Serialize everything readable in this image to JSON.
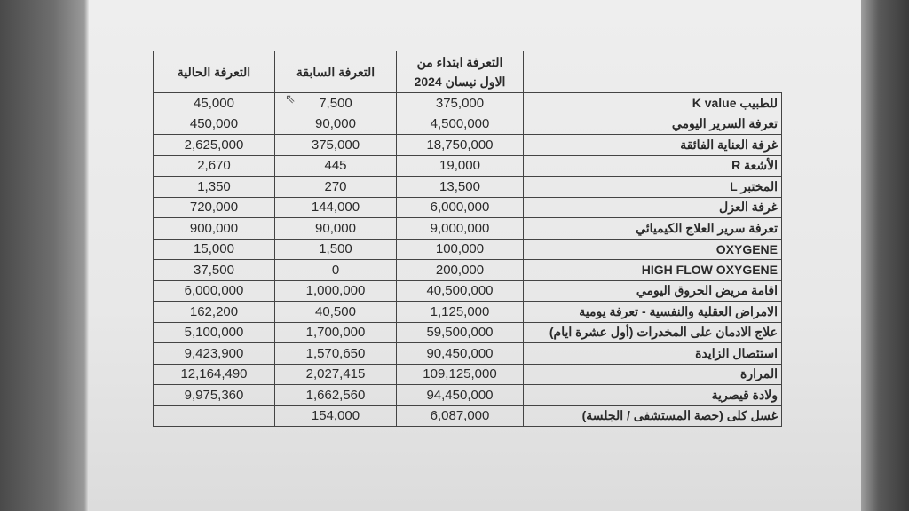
{
  "headers": {
    "current": "التعرفة الحالية",
    "previous": "التعرفة السابقة",
    "from_april_line1": "التعرفة ابتداء من",
    "from_april_line2": "الاول نيسان 2024"
  },
  "rows": [
    {
      "label": "للطبيب K value",
      "current": "45,000",
      "previous": "7,500",
      "from_april": "375,000"
    },
    {
      "label": "تعرفة السرير اليومي",
      "current": "450,000",
      "previous": "90,000",
      "from_april": "4,500,000"
    },
    {
      "label": "غرفة العناية الفائقة",
      "current": "2,625,000",
      "previous": "375,000",
      "from_april": "18,750,000"
    },
    {
      "label": "الأشعة R",
      "current": "2,670",
      "previous": "445",
      "from_april": "19,000"
    },
    {
      "label": "المختبر L",
      "current": "1,350",
      "previous": "270",
      "from_april": "13,500"
    },
    {
      "label": "غرفة العزل",
      "current": "720,000",
      "previous": "144,000",
      "from_april": "6,000,000"
    },
    {
      "label": "تعرفة سرير العلاج الكيميائي",
      "current": "900,000",
      "previous": "90,000",
      "from_april": "9,000,000"
    },
    {
      "label": "OXYGENE",
      "current": "15,000",
      "previous": "1,500",
      "from_april": "100,000"
    },
    {
      "label": "HIGH FLOW OXYGENE",
      "current": "37,500",
      "previous": "0",
      "from_april": "200,000"
    },
    {
      "label": "اقامة مريض الحروق اليومي",
      "current": "6,000,000",
      "previous": "1,000,000",
      "from_april": "40,500,000"
    },
    {
      "label": "الامراض العقلية والنفسية - تعرفة يومية",
      "current": "162,200",
      "previous": "40,500",
      "from_april": "1,125,000"
    },
    {
      "label": "علاج الادمان على المخدرات (أول عشرة ايام)",
      "current": "5,100,000",
      "previous": "1,700,000",
      "from_april": "59,500,000"
    },
    {
      "label": "استئصال الزايدة",
      "current": "9,423,900",
      "previous": "1,570,650",
      "from_april": "90,450,000"
    },
    {
      "label": "المرارة",
      "current": "12,164,490",
      "previous": "2,027,415",
      "from_april": "109,125,000"
    },
    {
      "label": "ولادة قيصرية",
      "current": "9,975,360",
      "previous": "1,662,560",
      "from_april": "94,450,000"
    },
    {
      "label": "غسل كلى (حصة المستشفى / الجلسة)",
      "current": "",
      "previous": "154,000",
      "from_april": "6,087,000"
    }
  ]
}
